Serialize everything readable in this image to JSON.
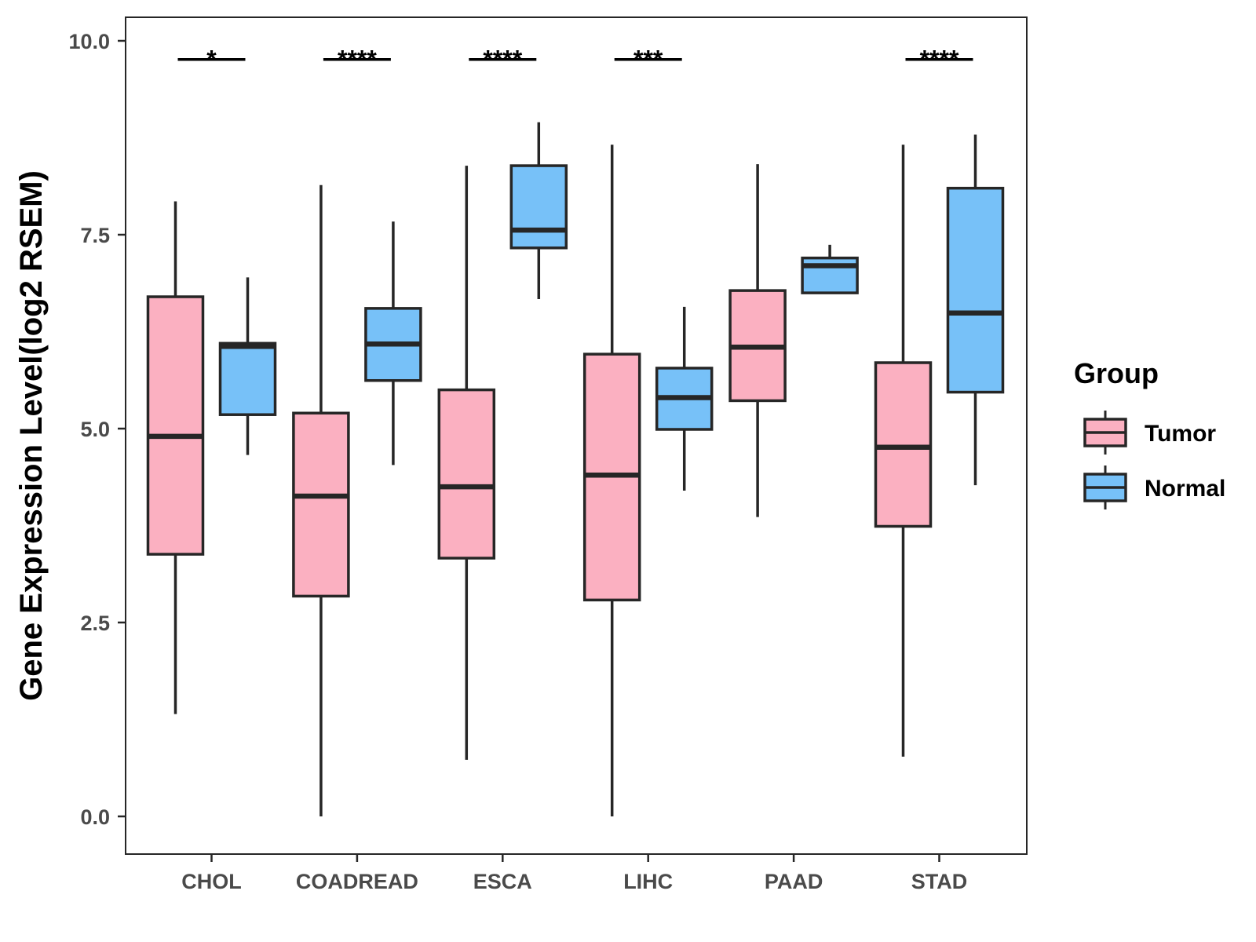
{
  "chart_data": {
    "type": "boxplot",
    "title": "",
    "xlabel": "",
    "ylabel": "Gene Expression Level(log2 RSEM)",
    "ylim": [
      -0.45,
      10.3
    ],
    "yticks": [
      0.0,
      2.5,
      5.0,
      7.5,
      10.0
    ],
    "ytick_labels": [
      "0.0",
      "2.5",
      "5.0",
      "7.5",
      "10.0"
    ],
    "grid": false,
    "legend": {
      "title": "Group",
      "position": "right",
      "entries": [
        "Tumor",
        "Normal"
      ]
    },
    "colors": {
      "Tumor": "#fbb0c1",
      "Normal": "#77c1f8",
      "stroke": "#262626",
      "panel_border": "#262626"
    },
    "categories": [
      "CHOL",
      "COADREAD",
      "ESCA",
      "LIHC",
      "PAAD",
      "STAD"
    ],
    "series": [
      {
        "name": "Tumor",
        "boxes": [
          {
            "whisker_low": 1.32,
            "q1": 3.38,
            "median": 4.9,
            "q3": 6.7,
            "whisker_high": 7.93
          },
          {
            "whisker_low": 0.0,
            "q1": 2.84,
            "median": 4.13,
            "q3": 5.2,
            "whisker_high": 8.14
          },
          {
            "whisker_low": 0.73,
            "q1": 3.33,
            "median": 4.25,
            "q3": 5.5,
            "whisker_high": 8.39
          },
          {
            "whisker_low": 0.0,
            "q1": 2.79,
            "median": 4.4,
            "q3": 5.96,
            "whisker_high": 8.66
          },
          {
            "whisker_low": 3.86,
            "q1": 5.36,
            "median": 6.05,
            "q3": 6.78,
            "whisker_high": 8.41
          },
          {
            "whisker_low": 0.77,
            "q1": 3.74,
            "median": 4.76,
            "q3": 5.85,
            "whisker_high": 8.66
          }
        ]
      },
      {
        "name": "Normal",
        "boxes": [
          {
            "whisker_low": 4.66,
            "q1": 5.18,
            "median": 6.06,
            "q3": 6.1,
            "whisker_high": 6.95
          },
          {
            "whisker_low": 4.53,
            "q1": 5.62,
            "median": 6.09,
            "q3": 6.55,
            "whisker_high": 7.67
          },
          {
            "whisker_low": 6.67,
            "q1": 7.33,
            "median": 7.56,
            "q3": 8.39,
            "whisker_high": 8.95
          },
          {
            "whisker_low": 4.2,
            "q1": 4.99,
            "median": 5.4,
            "q3": 5.78,
            "whisker_high": 6.57
          },
          {
            "whisker_low": 6.75,
            "q1": 6.75,
            "median": 7.1,
            "q3": 7.2,
            "whisker_high": 7.37
          },
          {
            "whisker_low": 4.27,
            "q1": 5.47,
            "median": 6.49,
            "q3": 8.1,
            "whisker_high": 8.79
          }
        ]
      }
    ],
    "significance": [
      {
        "category": "CHOL",
        "label": "*"
      },
      {
        "category": "COADREAD",
        "label": "****"
      },
      {
        "category": "ESCA",
        "label": "****"
      },
      {
        "category": "LIHC",
        "label": "***"
      },
      {
        "category": "STAD",
        "label": "****"
      }
    ],
    "significance_bar_y": 9.76
  }
}
